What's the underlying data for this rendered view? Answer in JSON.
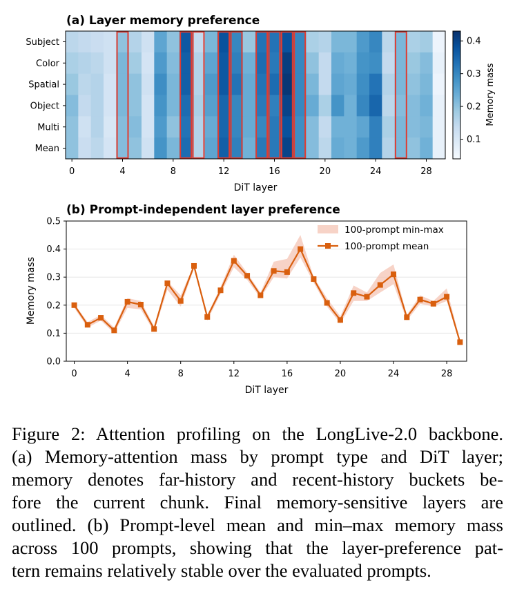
{
  "chart_data": [
    {
      "type": "heatmap",
      "title": "(a) Layer memory preference",
      "xlabel": "DiT layer",
      "ylabel": "",
      "x_ticks": [
        0,
        4,
        8,
        12,
        16,
        20,
        24,
        28
      ],
      "rows": [
        "Subject",
        "Color",
        "Spatial",
        "Object",
        "Multi",
        "Mean"
      ],
      "columns": [
        0,
        1,
        2,
        3,
        4,
        5,
        6,
        7,
        8,
        9,
        10,
        11,
        12,
        13,
        14,
        15,
        16,
        17,
        18,
        19,
        20,
        21,
        22,
        23,
        24,
        25,
        26,
        27,
        28,
        29
      ],
      "values": [
        [
          0.15,
          0.14,
          0.13,
          0.12,
          0.2,
          0.16,
          0.12,
          0.25,
          0.2,
          0.37,
          0.14,
          0.22,
          0.38,
          0.3,
          0.19,
          0.33,
          0.33,
          0.38,
          0.3,
          0.17,
          0.16,
          0.22,
          0.22,
          0.27,
          0.3,
          0.15,
          0.22,
          0.17,
          0.18,
          0.06
        ],
        [
          0.17,
          0.16,
          0.15,
          0.12,
          0.22,
          0.18,
          0.11,
          0.27,
          0.21,
          0.36,
          0.16,
          0.25,
          0.37,
          0.31,
          0.23,
          0.34,
          0.32,
          0.41,
          0.3,
          0.2,
          0.14,
          0.24,
          0.23,
          0.28,
          0.29,
          0.14,
          0.22,
          0.19,
          0.21,
          0.07
        ],
        [
          0.19,
          0.15,
          0.16,
          0.11,
          0.22,
          0.2,
          0.12,
          0.29,
          0.22,
          0.36,
          0.16,
          0.27,
          0.37,
          0.33,
          0.24,
          0.33,
          0.34,
          0.42,
          0.3,
          0.22,
          0.14,
          0.25,
          0.24,
          0.29,
          0.33,
          0.16,
          0.22,
          0.2,
          0.22,
          0.06
        ],
        [
          0.21,
          0.14,
          0.16,
          0.11,
          0.22,
          0.2,
          0.11,
          0.28,
          0.22,
          0.34,
          0.17,
          0.26,
          0.35,
          0.3,
          0.24,
          0.32,
          0.31,
          0.4,
          0.3,
          0.24,
          0.17,
          0.28,
          0.23,
          0.3,
          0.35,
          0.15,
          0.21,
          0.21,
          0.23,
          0.07
        ],
        [
          0.2,
          0.12,
          0.16,
          0.1,
          0.21,
          0.21,
          0.11,
          0.27,
          0.2,
          0.33,
          0.16,
          0.24,
          0.35,
          0.3,
          0.24,
          0.3,
          0.32,
          0.38,
          0.29,
          0.21,
          0.14,
          0.23,
          0.23,
          0.25,
          0.31,
          0.17,
          0.22,
          0.21,
          0.22,
          0.07
        ],
        [
          0.2,
          0.13,
          0.15,
          0.11,
          0.21,
          0.2,
          0.12,
          0.28,
          0.22,
          0.34,
          0.16,
          0.25,
          0.36,
          0.31,
          0.23,
          0.32,
          0.32,
          0.4,
          0.29,
          0.21,
          0.15,
          0.24,
          0.23,
          0.27,
          0.31,
          0.16,
          0.22,
          0.2,
          0.23,
          0.07
        ]
      ],
      "outlined_layers": [
        4,
        9,
        10,
        12,
        13,
        15,
        16,
        17,
        18,
        26
      ],
      "colorbar": {
        "label": "Memory mass",
        "ticks": [
          0.1,
          0.2,
          0.3,
          0.4
        ],
        "range": [
          0.04,
          0.43
        ],
        "colormap": "Blues"
      },
      "outline_color": "#e03c31"
    },
    {
      "type": "line",
      "title": "(b) Prompt-independent layer preference",
      "xlabel": "DiT layer",
      "ylabel": "Memory mass",
      "x_ticks": [
        0,
        4,
        8,
        12,
        16,
        20,
        24,
        28
      ],
      "y_ticks": [
        "0.0",
        "0.1",
        "0.2",
        "0.3",
        "0.4",
        "0.5"
      ],
      "xlim": [
        -0.6,
        29.5
      ],
      "ylim": [
        0,
        0.5
      ],
      "legend_position": "top-right",
      "x": [
        0,
        1,
        2,
        3,
        4,
        5,
        6,
        7,
        8,
        9,
        10,
        11,
        12,
        13,
        14,
        15,
        16,
        17,
        18,
        19,
        20,
        21,
        22,
        23,
        24,
        25,
        26,
        27,
        28,
        29
      ],
      "series": [
        {
          "name": "100-prompt mean",
          "color": "#d95f0e",
          "marker": "square",
          "values": [
            0.2,
            0.13,
            0.155,
            0.11,
            0.212,
            0.202,
            0.115,
            0.278,
            0.215,
            0.34,
            0.158,
            0.253,
            0.358,
            0.305,
            0.235,
            0.322,
            0.318,
            0.4,
            0.293,
            0.208,
            0.147,
            0.243,
            0.23,
            0.272,
            0.31,
            0.157,
            0.22,
            0.205,
            0.23,
            0.068
          ]
        },
        {
          "name": "100-prompt min-max",
          "color": "#f4c4b4",
          "type": "band",
          "min": [
            0.19,
            0.12,
            0.145,
            0.1,
            0.19,
            0.185,
            0.105,
            0.255,
            0.195,
            0.33,
            0.145,
            0.24,
            0.335,
            0.29,
            0.225,
            0.3,
            0.295,
            0.37,
            0.28,
            0.195,
            0.135,
            0.215,
            0.215,
            0.245,
            0.275,
            0.145,
            0.205,
            0.195,
            0.215,
            0.062
          ],
          "max": [
            0.205,
            0.14,
            0.165,
            0.12,
            0.225,
            0.215,
            0.125,
            0.285,
            0.235,
            0.345,
            0.165,
            0.265,
            0.38,
            0.315,
            0.245,
            0.355,
            0.365,
            0.45,
            0.3,
            0.225,
            0.16,
            0.27,
            0.245,
            0.315,
            0.345,
            0.165,
            0.235,
            0.215,
            0.26,
            0.075
          ]
        }
      ]
    }
  ],
  "caption_lines": [
    "Figure 2: Attention profiling on the LongLive-2.0 backbone.",
    "(a) Memory-attention mass by prompt type and DiT layer;",
    "memory denotes far-history and recent-history buckets be-",
    "fore the current chunk. Final memory-sensitive layers are",
    "outlined. (b) Prompt-level mean and min–max memory mass",
    "across 100 prompts, showing that the layer-preference pat-",
    "tern remains relatively stable over the evaluated prompts."
  ]
}
